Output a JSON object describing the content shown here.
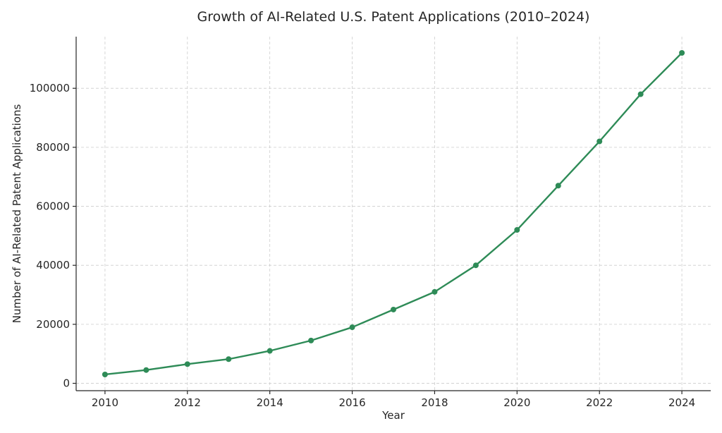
{
  "chart_data": {
    "type": "line",
    "title": "Growth of AI-Related U.S. Patent Applications (2010–2024)",
    "xlabel": "Year",
    "ylabel": "Number of AI-Related Patent Applications",
    "x": [
      2010,
      2011,
      2012,
      2013,
      2014,
      2015,
      2016,
      2017,
      2018,
      2019,
      2020,
      2021,
      2022,
      2023,
      2024
    ],
    "series": [
      {
        "name": "",
        "color": "#2e8b57",
        "values": [
          3000,
          4500,
          6500,
          8200,
          11000,
          14500,
          19000,
          25000,
          31000,
          40000,
          52000,
          67000,
          82000,
          98000,
          112000
        ]
      }
    ],
    "xticks": [
      "2010",
      "2012",
      "2014",
      "2016",
      "2018",
      "2020",
      "2022",
      "2024"
    ],
    "yticks": [
      "0",
      "20000",
      "40000",
      "60000",
      "80000",
      "100000"
    ],
    "xlim": [
      2009.3,
      2024.7
    ],
    "ylim": [
      -2500,
      117500
    ],
    "grid": true,
    "legend": "none"
  }
}
